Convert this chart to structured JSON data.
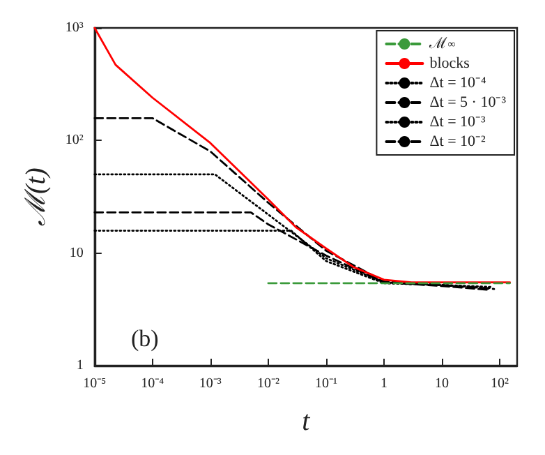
{
  "chart_data": {
    "type": "line",
    "xlabel": "t",
    "ylabel": "ℳ(t)",
    "log": "xy",
    "xlim": [
      1e-05,
      200
    ],
    "ylim": [
      1,
      1000
    ],
    "xticks": [
      {
        "value": 1e-05,
        "label": "10⁻⁵"
      },
      {
        "value": 0.0001,
        "label": "10⁻⁴"
      },
      {
        "value": 0.001,
        "label": "10⁻³"
      },
      {
        "value": 0.01,
        "label": "10⁻²"
      },
      {
        "value": 0.1,
        "label": "10⁻¹"
      },
      1,
      10,
      {
        "value": 100,
        "label": "10²"
      }
    ],
    "yticks": [
      1,
      10,
      {
        "value": 100,
        "label": "10²"
      },
      {
        "value": 1000,
        "label": "10³"
      }
    ],
    "grid": false,
    "legend": "top right",
    "marker": "none",
    "annotations": [
      "(b)"
    ],
    "series": [
      {
        "name": "ℳ$_{∞}$",
        "color": "#3a9a3a",
        "line_style": "dashed",
        "x": [
          0.01,
          150
        ],
        "values": [
          5.4,
          5.4
        ]
      },
      {
        "name": "blocks",
        "color": "#ff0000",
        "line_style": "solid",
        "x": [
          1e-05,
          2.3e-05,
          0.0001,
          0.001,
          0.01,
          0.03,
          0.1,
          0.3,
          1,
          3,
          10,
          150
        ],
        "values": [
          1000,
          470,
          240,
          95,
          30,
          17,
          11,
          7.5,
          5.8,
          5.5,
          5.5,
          5.5
        ]
      },
      {
        "name": "Δt = 10⁻⁴",
        "color": "#000000",
        "line_style": "dotted",
        "x": [
          1e-05,
          0.025,
          0.1,
          1,
          10,
          70
        ],
        "values": [
          15.8,
          15.8,
          8.5,
          5.4,
          5.2,
          5
        ]
      },
      {
        "name": "Δt = 5 · 10⁻³",
        "color": "#000000",
        "line_style": "dashed",
        "x": [
          1e-05,
          0.005,
          0.01,
          0.1,
          1,
          10,
          70
        ],
        "values": [
          23,
          23,
          18,
          9.5,
          5.5,
          5.1,
          4.7
        ]
      },
      {
        "name": "Δt = 10⁻³",
        "color": "#000000",
        "line_style": "dotted",
        "x": [
          1e-05,
          0.0012,
          0.01,
          0.1,
          1,
          10,
          70
        ],
        "values": [
          50,
          50,
          22,
          9,
          5.5,
          5.2,
          4.9
        ]
      },
      {
        "name": "Δt = 10⁻²",
        "color": "#000000",
        "line_style": "dashed",
        "x": [
          1e-05,
          0.0001,
          0.001,
          0.01,
          0.1,
          1,
          10,
          80
        ],
        "values": [
          158,
          158,
          80,
          28,
          10.5,
          5.6,
          5.2,
          4.8
        ]
      }
    ]
  }
}
